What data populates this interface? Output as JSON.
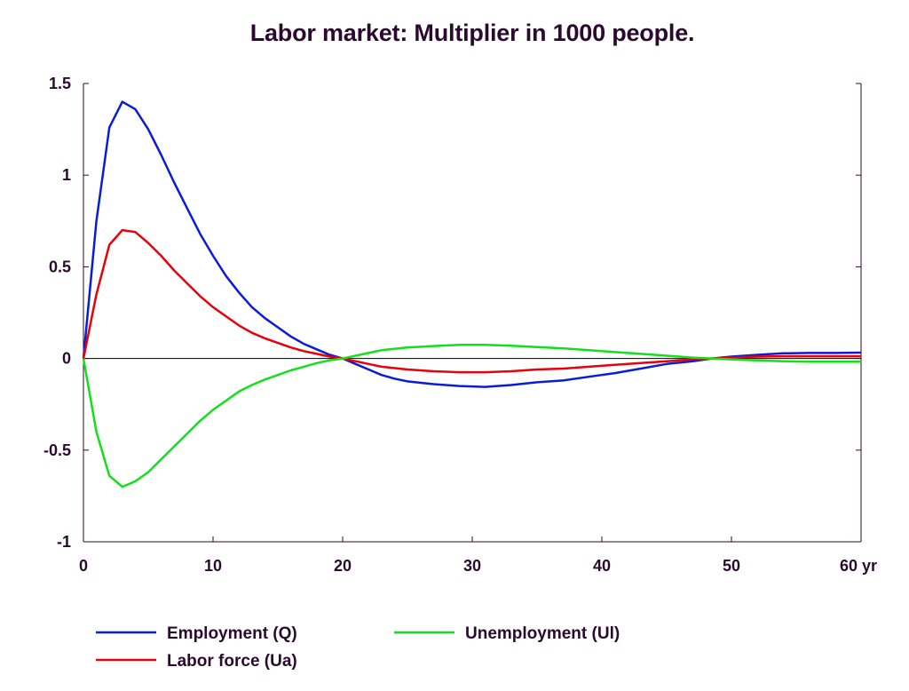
{
  "chart_data": {
    "type": "line",
    "title": "Labor market: Multiplier in 1000 people.",
    "xlabel": "",
    "ylabel": "",
    "xlim": [
      0,
      60
    ],
    "ylim": [
      -1,
      1.5
    ],
    "x_ticks": [
      0,
      10,
      20,
      30,
      40,
      50,
      60
    ],
    "x_tick_labels": [
      "0",
      "10",
      "20",
      "30",
      "40",
      "50",
      "60 yr"
    ],
    "y_ticks": [
      1.5,
      1,
      0.5,
      0,
      -0.5,
      -1
    ],
    "y_tick_labels": [
      "1.5",
      "1",
      "0.5",
      "0",
      "-0.5",
      "-1"
    ],
    "grid": false,
    "legend_position": "bottom",
    "series": [
      {
        "name": "Employment (Q)",
        "color": "#0b1cd6",
        "points": [
          [
            0,
            0
          ],
          [
            1,
            0.75
          ],
          [
            2,
            1.26
          ],
          [
            3,
            1.4
          ],
          [
            4,
            1.36
          ],
          [
            5,
            1.25
          ],
          [
            6,
            1.11
          ],
          [
            7,
            0.96
          ],
          [
            8,
            0.82
          ],
          [
            9,
            0.68
          ],
          [
            10,
            0.56
          ],
          [
            11,
            0.45
          ],
          [
            12,
            0.36
          ],
          [
            13,
            0.28
          ],
          [
            14,
            0.22
          ],
          [
            15,
            0.17
          ],
          [
            16,
            0.12
          ],
          [
            17,
            0.08
          ],
          [
            18,
            0.05
          ],
          [
            19,
            0.02
          ],
          [
            20,
            0.0
          ],
          [
            21,
            -0.03
          ],
          [
            22,
            -0.06
          ],
          [
            23,
            -0.09
          ],
          [
            24,
            -0.11
          ],
          [
            25,
            -0.125
          ],
          [
            27,
            -0.14
          ],
          [
            29,
            -0.15
          ],
          [
            31,
            -0.155
          ],
          [
            33,
            -0.145
          ],
          [
            35,
            -0.13
          ],
          [
            37,
            -0.12
          ],
          [
            39,
            -0.1
          ],
          [
            41,
            -0.08
          ],
          [
            43,
            -0.055
          ],
          [
            45,
            -0.03
          ],
          [
            47,
            -0.015
          ],
          [
            48.5,
            0.0
          ],
          [
            50,
            0.01
          ],
          [
            52,
            0.02
          ],
          [
            54,
            0.028
          ],
          [
            56,
            0.03
          ],
          [
            58,
            0.03
          ],
          [
            60,
            0.032
          ]
        ]
      },
      {
        "name": "Labor force (Ua)",
        "color": "#e8000b",
        "points": [
          [
            0,
            0
          ],
          [
            1,
            0.35
          ],
          [
            2,
            0.62
          ],
          [
            3,
            0.7
          ],
          [
            4,
            0.69
          ],
          [
            5,
            0.63
          ],
          [
            6,
            0.56
          ],
          [
            7,
            0.48
          ],
          [
            8,
            0.41
          ],
          [
            9,
            0.34
          ],
          [
            10,
            0.28
          ],
          [
            11,
            0.23
          ],
          [
            12,
            0.18
          ],
          [
            13,
            0.14
          ],
          [
            14,
            0.11
          ],
          [
            15,
            0.085
          ],
          [
            16,
            0.06
          ],
          [
            17,
            0.04
          ],
          [
            18,
            0.025
          ],
          [
            19,
            0.01
          ],
          [
            20,
            0.0
          ],
          [
            21,
            -0.015
          ],
          [
            22,
            -0.03
          ],
          [
            23,
            -0.045
          ],
          [
            25,
            -0.06
          ],
          [
            27,
            -0.07
          ],
          [
            29,
            -0.075
          ],
          [
            31,
            -0.075
          ],
          [
            33,
            -0.07
          ],
          [
            35,
            -0.06
          ],
          [
            37,
            -0.055
          ],
          [
            39,
            -0.045
          ],
          [
            41,
            -0.035
          ],
          [
            43,
            -0.025
          ],
          [
            45,
            -0.015
          ],
          [
            47,
            -0.005
          ],
          [
            48.5,
            0.0
          ],
          [
            50,
            0.005
          ],
          [
            52,
            0.01
          ],
          [
            54,
            0.012
          ],
          [
            56,
            0.012
          ],
          [
            58,
            0.012
          ],
          [
            60,
            0.012
          ]
        ]
      },
      {
        "name": "Unemployment (Ul)",
        "color": "#13e01c",
        "points": [
          [
            0,
            0
          ],
          [
            1,
            -0.4
          ],
          [
            2,
            -0.64
          ],
          [
            3,
            -0.7
          ],
          [
            4,
            -0.67
          ],
          [
            5,
            -0.62
          ],
          [
            6,
            -0.55
          ],
          [
            7,
            -0.48
          ],
          [
            8,
            -0.41
          ],
          [
            9,
            -0.34
          ],
          [
            10,
            -0.28
          ],
          [
            11,
            -0.23
          ],
          [
            12,
            -0.18
          ],
          [
            13,
            -0.145
          ],
          [
            14,
            -0.115
          ],
          [
            15,
            -0.09
          ],
          [
            16,
            -0.065
          ],
          [
            17,
            -0.045
          ],
          [
            18,
            -0.025
          ],
          [
            19,
            -0.01
          ],
          [
            20,
            0.0
          ],
          [
            21,
            0.015
          ],
          [
            22,
            0.03
          ],
          [
            23,
            0.045
          ],
          [
            25,
            0.06
          ],
          [
            27,
            0.068
          ],
          [
            29,
            0.074
          ],
          [
            31,
            0.074
          ],
          [
            33,
            0.07
          ],
          [
            35,
            0.062
          ],
          [
            37,
            0.055
          ],
          [
            39,
            0.045
          ],
          [
            41,
            0.035
          ],
          [
            43,
            0.025
          ],
          [
            45,
            0.015
          ],
          [
            47,
            0.005
          ],
          [
            48.5,
            0.0
          ],
          [
            50,
            -0.005
          ],
          [
            52,
            -0.01
          ],
          [
            54,
            -0.015
          ],
          [
            56,
            -0.018
          ],
          [
            58,
            -0.018
          ],
          [
            60,
            -0.018
          ]
        ]
      }
    ]
  }
}
